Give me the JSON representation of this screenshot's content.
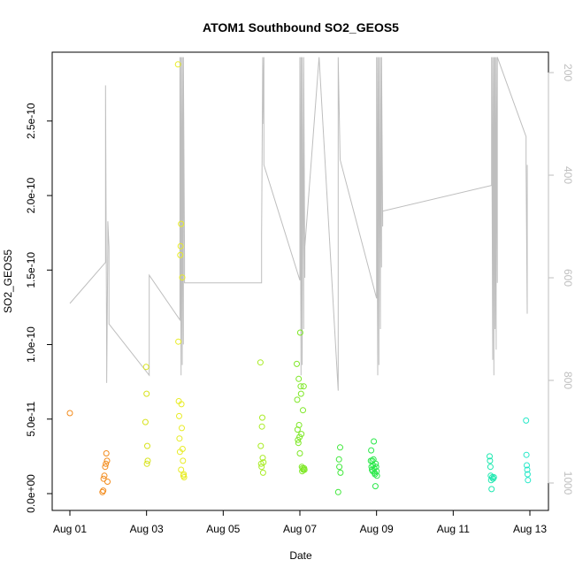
{
  "chart_data": {
    "type": "scatter",
    "title": "ATOM1 Southbound SO2_GEOS5",
    "xlabel": "Date",
    "ylabel": "SO2_GEOS5",
    "xlim": [
      0.0,
      12.5
    ],
    "ylim": [
      0.0,
      2.95e-10
    ],
    "x_ticks": [
      {
        "v": 0,
        "label": "Aug 01"
      },
      {
        "v": 2,
        "label": "Aug 03"
      },
      {
        "v": 4,
        "label": "Aug 05"
      },
      {
        "v": 6,
        "label": "Aug 07"
      },
      {
        "v": 8,
        "label": "Aug 09"
      },
      {
        "v": 10,
        "label": "Aug 11"
      },
      {
        "v": 12,
        "label": "Aug 13"
      }
    ],
    "y_ticks": [
      {
        "v": 0,
        "label": "0.0e+00"
      },
      {
        "v": 5e-11,
        "label": "5.0e-11"
      },
      {
        "v": 1e-10,
        "label": "1.0e-10"
      },
      {
        "v": 1.5e-10,
        "label": "1.5e-10"
      },
      {
        "v": 2e-10,
        "label": "2.0e-10"
      },
      {
        "v": 2.5e-10,
        "label": "2.5e-10"
      }
    ],
    "right_axis": {
      "color": "#bebebe",
      "reversed": true,
      "lim": [
        162,
        1050
      ],
      "ticks": [
        {
          "v": 200,
          "label": "200"
        },
        {
          "v": 400,
          "label": "400"
        },
        {
          "v": 600,
          "label": "600"
        },
        {
          "v": 800,
          "label": "800"
        },
        {
          "v": 1000,
          "label": "1000"
        }
      ]
    },
    "pressure_line": {
      "color": "#bebebe",
      "points": [
        [
          0.0,
          650
        ],
        [
          0.93,
          570
        ],
        [
          0.93,
          225
        ],
        [
          0.96,
          760
        ],
        [
          0.96,
          805
        ],
        [
          0.99,
          540
        ],
        [
          0.99,
          490
        ],
        [
          1.02,
          540
        ],
        [
          1.02,
          690
        ],
        [
          2.07,
          790
        ],
        [
          2.07,
          595
        ],
        [
          2.87,
          682
        ],
        [
          2.87,
          170
        ],
        [
          2.9,
          790
        ],
        [
          2.9,
          170
        ],
        [
          2.93,
          770
        ],
        [
          2.93,
          170
        ],
        [
          2.96,
          730
        ],
        [
          2.96,
          170
        ],
        [
          2.99,
          560
        ],
        [
          2.99,
          610
        ],
        [
          5.0,
          610
        ],
        [
          5.0,
          520
        ],
        [
          5.03,
          170
        ],
        [
          5.03,
          300
        ],
        [
          5.06,
          170
        ],
        [
          5.06,
          380
        ],
        [
          6.0,
          605
        ],
        [
          6.0,
          170
        ],
        [
          6.03,
          790
        ],
        [
          6.03,
          170
        ],
        [
          6.06,
          770
        ],
        [
          6.06,
          170
        ],
        [
          6.1,
          700
        ],
        [
          6.1,
          170
        ],
        [
          6.13,
          600
        ],
        [
          6.13,
          540
        ],
        [
          6.5,
          170
        ],
        [
          7.0,
          820
        ],
        [
          7.0,
          170
        ],
        [
          7.05,
          370
        ],
        [
          8.0,
          640
        ],
        [
          8.0,
          170
        ],
        [
          8.03,
          790
        ],
        [
          8.03,
          170
        ],
        [
          8.06,
          770
        ],
        [
          8.06,
          170
        ],
        [
          8.1,
          700
        ],
        [
          8.1,
          170
        ],
        [
          8.13,
          580
        ],
        [
          8.13,
          170
        ],
        [
          8.16,
          500
        ],
        [
          8.16,
          470
        ],
        [
          11.0,
          420
        ],
        [
          11.0,
          170
        ],
        [
          11.03,
          760
        ],
        [
          11.03,
          170
        ],
        [
          11.06,
          790
        ],
        [
          11.06,
          170
        ],
        [
          11.09,
          700
        ],
        [
          11.09,
          170
        ],
        [
          11.12,
          740
        ],
        [
          11.12,
          170
        ],
        [
          11.15,
          610
        ],
        [
          11.15,
          170
        ],
        [
          11.9,
          325
        ],
        [
          11.9,
          380
        ],
        [
          11.93,
          670
        ],
        [
          11.93,
          380
        ]
      ]
    },
    "points": [
      {
        "x": 0.0,
        "y": 5.4e-11,
        "c": "#f28b1c"
      },
      {
        "x": 0.85,
        "y": 1e-12,
        "c": "#f28b1c"
      },
      {
        "x": 0.87,
        "y": 2e-12,
        "c": "#f28b1c"
      },
      {
        "x": 0.88,
        "y": 1e-11,
        "c": "#f28b1c"
      },
      {
        "x": 0.9,
        "y": 1.2e-11,
        "c": "#f28b1c"
      },
      {
        "x": 0.92,
        "y": 1.8e-11,
        "c": "#f28b1c"
      },
      {
        "x": 0.94,
        "y": 2e-11,
        "c": "#f28b1c"
      },
      {
        "x": 0.95,
        "y": 2.7e-11,
        "c": "#f28b1c"
      },
      {
        "x": 0.97,
        "y": 2.2e-11,
        "c": "#f28b1c"
      },
      {
        "x": 0.98,
        "y": 8e-12,
        "c": "#f28b1c"
      },
      {
        "x": 1.97,
        "y": 4.8e-11,
        "c": "#d8e31c"
      },
      {
        "x": 1.99,
        "y": 8.5e-11,
        "c": "#d8e31c"
      },
      {
        "x": 2.0,
        "y": 6.7e-11,
        "c": "#d8e31c"
      },
      {
        "x": 2.01,
        "y": 2e-11,
        "c": "#d8e31c"
      },
      {
        "x": 2.02,
        "y": 3.2e-11,
        "c": "#d8e31c"
      },
      {
        "x": 2.03,
        "y": 2.2e-11,
        "c": "#d8e31c"
      },
      {
        "x": 2.82,
        "y": 2.88e-10,
        "c": "#e8ec26"
      },
      {
        "x": 2.83,
        "y": 1.02e-10,
        "c": "#e8ec26"
      },
      {
        "x": 2.84,
        "y": 6.2e-11,
        "c": "#e8ec26"
      },
      {
        "x": 2.85,
        "y": 5.2e-11,
        "c": "#e8ec26"
      },
      {
        "x": 2.86,
        "y": 3.7e-11,
        "c": "#e8ec26"
      },
      {
        "x": 2.87,
        "y": 2.8e-11,
        "c": "#e8ec26"
      },
      {
        "x": 2.88,
        "y": 1.6e-10,
        "c": "#e8ec26"
      },
      {
        "x": 2.89,
        "y": 1.66e-10,
        "c": "#e8ec26"
      },
      {
        "x": 2.9,
        "y": 1.81e-10,
        "c": "#e8ec26"
      },
      {
        "x": 2.91,
        "y": 6e-11,
        "c": "#e8ec26"
      },
      {
        "x": 2.92,
        "y": 4.4e-11,
        "c": "#e8ec26"
      },
      {
        "x": 2.93,
        "y": 1.45e-10,
        "c": "#e8ec26"
      },
      {
        "x": 2.94,
        "y": 3e-11,
        "c": "#e8ec26"
      },
      {
        "x": 2.95,
        "y": 2.2e-11,
        "c": "#e8ec26"
      },
      {
        "x": 2.96,
        "y": 1.2e-11,
        "c": "#e8ec26"
      },
      {
        "x": 2.97,
        "y": 1.3e-11,
        "c": "#e8ec26"
      },
      {
        "x": 2.98,
        "y": 1.1e-11,
        "c": "#e8ec26"
      },
      {
        "x": 2.9,
        "y": 1.6e-11,
        "c": "#e8ec26"
      },
      {
        "x": 4.97,
        "y": 8.8e-11,
        "c": "#a9ec26"
      },
      {
        "x": 4.98,
        "y": 3.2e-11,
        "c": "#a9ec26"
      },
      {
        "x": 4.99,
        "y": 2e-11,
        "c": "#a9ec26"
      },
      {
        "x": 5.0,
        "y": 1.8e-11,
        "c": "#a9ec26"
      },
      {
        "x": 5.01,
        "y": 4.5e-11,
        "c": "#a9ec26"
      },
      {
        "x": 5.02,
        "y": 5.1e-11,
        "c": "#a9ec26"
      },
      {
        "x": 5.03,
        "y": 2.4e-11,
        "c": "#a9ec26"
      },
      {
        "x": 5.04,
        "y": 1.4e-11,
        "c": "#a9ec26"
      },
      {
        "x": 5.05,
        "y": 2.1e-11,
        "c": "#a9ec26"
      },
      {
        "x": 5.92,
        "y": 8.7e-11,
        "c": "#7ee826"
      },
      {
        "x": 5.93,
        "y": 6.3e-11,
        "c": "#7ee826"
      },
      {
        "x": 5.94,
        "y": 4.3e-11,
        "c": "#7ee826"
      },
      {
        "x": 5.95,
        "y": 3.6e-11,
        "c": "#7ee826"
      },
      {
        "x": 5.96,
        "y": 3.4e-11,
        "c": "#7ee826"
      },
      {
        "x": 5.97,
        "y": 7.7e-11,
        "c": "#7ee826"
      },
      {
        "x": 5.98,
        "y": 4.6e-11,
        "c": "#7ee826"
      },
      {
        "x": 5.99,
        "y": 3.8e-11,
        "c": "#7ee826"
      },
      {
        "x": 6.0,
        "y": 2.7e-11,
        "c": "#7ee826"
      },
      {
        "x": 6.01,
        "y": 1.08e-10,
        "c": "#7ee826"
      },
      {
        "x": 6.02,
        "y": 7.2e-11,
        "c": "#7ee826"
      },
      {
        "x": 6.03,
        "y": 6.7e-11,
        "c": "#7ee826"
      },
      {
        "x": 6.04,
        "y": 4e-11,
        "c": "#7ee826"
      },
      {
        "x": 6.05,
        "y": 1.8e-11,
        "c": "#7ee826"
      },
      {
        "x": 6.06,
        "y": 1.5e-11,
        "c": "#7ee826"
      },
      {
        "x": 6.07,
        "y": 1.7e-11,
        "c": "#7ee826"
      },
      {
        "x": 6.08,
        "y": 5.6e-11,
        "c": "#7ee826"
      },
      {
        "x": 6.09,
        "y": 1.6e-11,
        "c": "#7ee826"
      },
      {
        "x": 6.1,
        "y": 7.2e-11,
        "c": "#7ee826"
      },
      {
        "x": 6.11,
        "y": 1.7e-11,
        "c": "#7ee826"
      },
      {
        "x": 6.12,
        "y": 1.6e-11,
        "c": "#7ee826"
      },
      {
        "x": 7.0,
        "y": 1e-12,
        "c": "#3fe83a"
      },
      {
        "x": 7.02,
        "y": 2.3e-11,
        "c": "#3fe83a"
      },
      {
        "x": 7.03,
        "y": 1.8e-11,
        "c": "#3fe83a"
      },
      {
        "x": 7.05,
        "y": 3.1e-11,
        "c": "#3fe83a"
      },
      {
        "x": 7.06,
        "y": 1.4e-11,
        "c": "#3fe83a"
      },
      {
        "x": 7.85,
        "y": 2.2e-11,
        "c": "#2be84a"
      },
      {
        "x": 7.86,
        "y": 2.9e-11,
        "c": "#2be84a"
      },
      {
        "x": 7.87,
        "y": 1.8e-11,
        "c": "#2be84a"
      },
      {
        "x": 7.88,
        "y": 1.6e-11,
        "c": "#2be84a"
      },
      {
        "x": 7.89,
        "y": 2.2e-11,
        "c": "#2be84a"
      },
      {
        "x": 7.9,
        "y": 1.5e-11,
        "c": "#2be84a"
      },
      {
        "x": 7.91,
        "y": 1.9e-11,
        "c": "#2be84a"
      },
      {
        "x": 7.92,
        "y": 2.3e-11,
        "c": "#2be84a"
      },
      {
        "x": 7.93,
        "y": 3.5e-11,
        "c": "#2be84a"
      },
      {
        "x": 7.94,
        "y": 1.7e-11,
        "c": "#2be84a"
      },
      {
        "x": 7.95,
        "y": 1.4e-11,
        "c": "#2be84a"
      },
      {
        "x": 7.96,
        "y": 1.3e-11,
        "c": "#2be84a"
      },
      {
        "x": 7.97,
        "y": 5e-12,
        "c": "#2be84a"
      },
      {
        "x": 7.98,
        "y": 2e-11,
        "c": "#2be84a"
      },
      {
        "x": 7.99,
        "y": 1.8e-11,
        "c": "#2be84a"
      },
      {
        "x": 8.0,
        "y": 1.5e-11,
        "c": "#2be84a"
      },
      {
        "x": 8.01,
        "y": 1.2e-11,
        "c": "#2be84a"
      },
      {
        "x": 10.95,
        "y": 2.5e-11,
        "c": "#1ee8b0"
      },
      {
        "x": 10.96,
        "y": 2.2e-11,
        "c": "#1ee8b0"
      },
      {
        "x": 10.97,
        "y": 1.8e-11,
        "c": "#1ee8b0"
      },
      {
        "x": 10.98,
        "y": 1.2e-11,
        "c": "#1ee8b0"
      },
      {
        "x": 10.99,
        "y": 9e-12,
        "c": "#1ee8b0"
      },
      {
        "x": 11.0,
        "y": 3e-12,
        "c": "#1ee8b0"
      },
      {
        "x": 11.02,
        "y": 1.1e-11,
        "c": "#1ee8b0"
      },
      {
        "x": 11.04,
        "y": 1e-11,
        "c": "#1ee8b0"
      },
      {
        "x": 11.06,
        "y": 1.1e-11,
        "c": "#1ee8b0"
      },
      {
        "x": 11.9,
        "y": 4.9e-11,
        "c": "#26e8c8"
      },
      {
        "x": 11.91,
        "y": 2.6e-11,
        "c": "#26e8c8"
      },
      {
        "x": 11.92,
        "y": 1.9e-11,
        "c": "#26e8c8"
      },
      {
        "x": 11.93,
        "y": 1.6e-11,
        "c": "#26e8c8"
      },
      {
        "x": 11.94,
        "y": 1.3e-11,
        "c": "#26e8c8"
      },
      {
        "x": 11.95,
        "y": 9e-12,
        "c": "#26e8c8"
      }
    ],
    "grid": false,
    "legend": "none"
  }
}
